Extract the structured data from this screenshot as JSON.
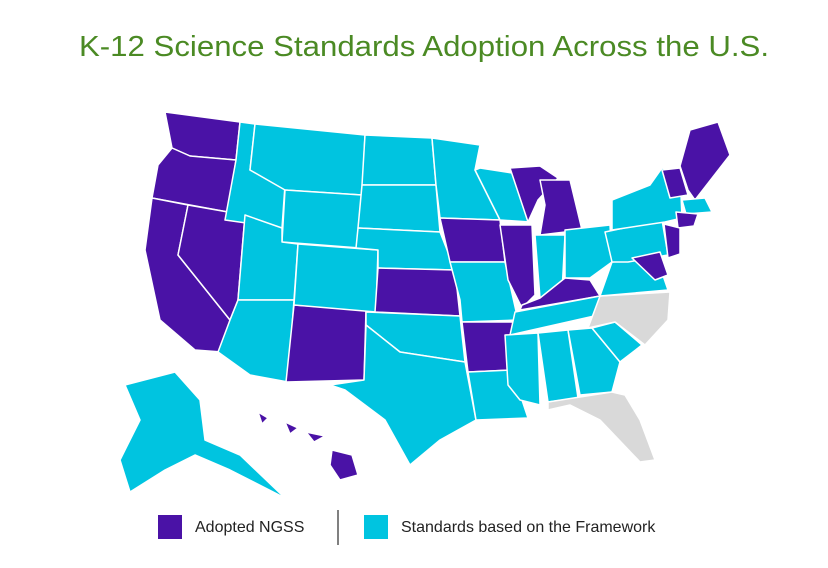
{
  "header": {
    "title": "K-12 Science Standards Adoption Across the U.S."
  },
  "legend": [
    {
      "label": "Adopted NGSS",
      "color": "#4a12a6"
    },
    {
      "label": "Standards based on the Framework",
      "color": "#00c4e0"
    }
  ]
}
